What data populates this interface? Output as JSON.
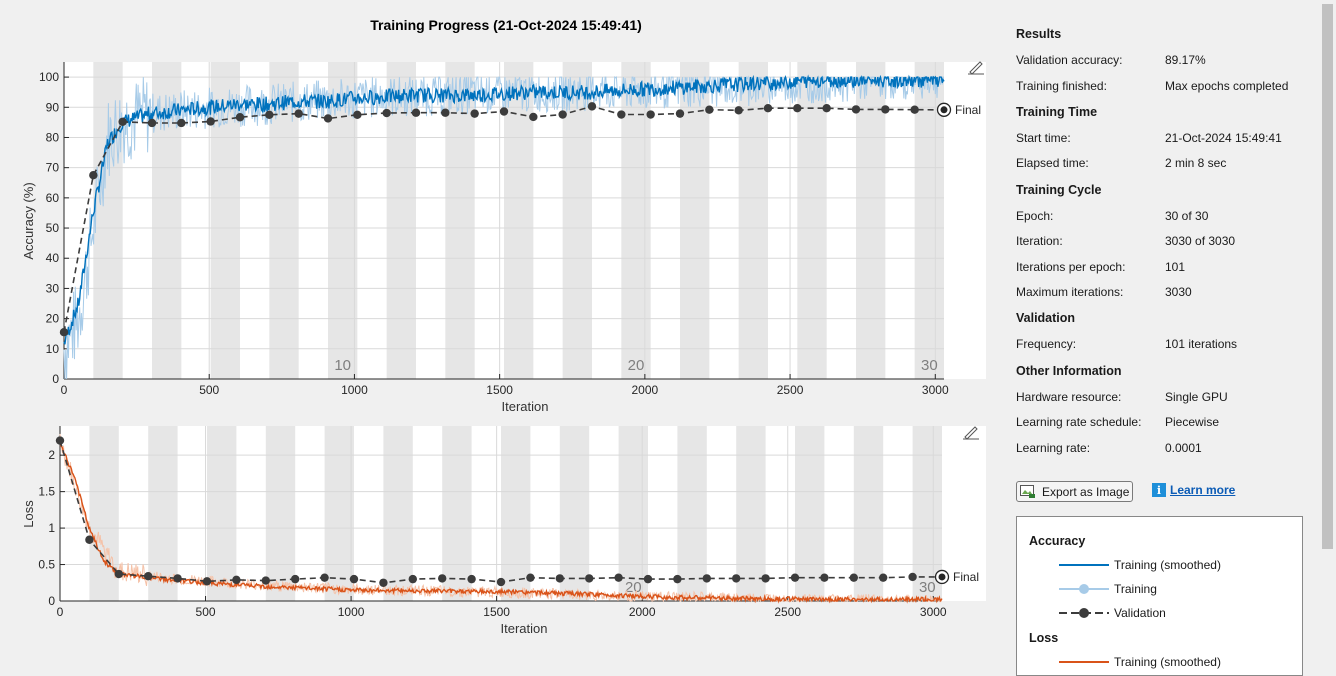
{
  "title": "Training Progress (21-Oct-2024 15:49:41)",
  "colors": {
    "training_smoothed_acc": "#0072bd",
    "training_acc": "#a7cbe8",
    "validation": "#3c3c3c",
    "training_smoothed_loss": "#d95319",
    "training_loss": "#f5c2a8",
    "epoch_band": "#e6e6e6"
  },
  "accuracy_chart": {
    "xlabel": "Iteration",
    "ylabel": "Accuracy (%)",
    "x_ticks": [
      "0",
      "500",
      "1000",
      "1500",
      "2000",
      "2500",
      "3000"
    ],
    "y_ticks": [
      "0",
      "10",
      "20",
      "30",
      "40",
      "50",
      "60",
      "70",
      "80",
      "90",
      "100"
    ],
    "epoch_labels": [
      "10",
      "20",
      "30"
    ],
    "final_label": "Final"
  },
  "loss_chart": {
    "xlabel": "Iteration",
    "ylabel": "Loss",
    "x_ticks": [
      "0",
      "500",
      "1000",
      "1500",
      "2000",
      "2500",
      "3000"
    ],
    "y_ticks": [
      "0",
      "0.5",
      "1",
      "1.5",
      "2"
    ],
    "epoch_labels": [
      "20",
      "30"
    ],
    "final_label": "Final"
  },
  "chart_data": [
    {
      "type": "line",
      "xlabel": "Iteration",
      "ylabel": "Accuracy (%)",
      "xlim": [
        0,
        3030
      ],
      "ylim": [
        0,
        100
      ],
      "epochs": 30,
      "iterations_per_epoch": 101,
      "series": [
        {
          "name": "Training (smoothed)",
          "x": [
            0,
            50,
            100,
            150,
            200,
            300,
            400,
            500,
            600,
            700,
            800,
            900,
            1000,
            1200,
            1400,
            1600,
            1800,
            2000,
            2200,
            2400,
            2600,
            2800,
            3030
          ],
          "values": [
            12,
            25,
            55,
            78,
            85,
            88,
            89,
            90,
            91,
            91,
            92,
            92,
            93,
            94,
            94,
            95,
            95,
            96,
            97,
            98,
            99,
            99,
            99
          ]
        },
        {
          "name": "Training",
          "x": [
            0,
            50,
            100,
            150,
            200,
            300,
            500,
            700,
            1000,
            1500,
            2000,
            2500,
            3030
          ],
          "values": [
            10,
            20,
            50,
            80,
            85,
            88,
            90,
            91,
            93,
            95,
            96,
            98,
            100
          ]
        },
        {
          "name": "Validation",
          "x": [
            0,
            101,
            202,
            303,
            404,
            505,
            606,
            707,
            808,
            909,
            1010,
            1111,
            1212,
            1313,
            1414,
            1515,
            1616,
            1717,
            1818,
            1919,
            2020,
            2121,
            2222,
            2323,
            2424,
            2525,
            2626,
            2727,
            2828,
            2929,
            3030
          ],
          "values": [
            15.5,
            67.5,
            85.2,
            84.8,
            84.8,
            85.3,
            86.7,
            87.5,
            87.9,
            86.3,
            87.5,
            88.1,
            88.2,
            88.2,
            87.9,
            88.6,
            86.8,
            87.6,
            90.3,
            87.6,
            87.6,
            87.9,
            89.2,
            89.0,
            89.7,
            89.7,
            89.7,
            89.3,
            89.3,
            89.2,
            89.17
          ]
        }
      ]
    },
    {
      "type": "line",
      "xlabel": "Iteration",
      "ylabel": "Loss",
      "xlim": [
        0,
        3030
      ],
      "ylim": [
        0,
        2.4
      ],
      "series": [
        {
          "name": "Training (smoothed)",
          "x": [
            0,
            50,
            100,
            150,
            200,
            300,
            400,
            500,
            700,
            1000,
            1300,
            1600,
            1900,
            2100,
            2400,
            2700,
            3030
          ],
          "values": [
            2.15,
            1.7,
            1.0,
            0.55,
            0.38,
            0.32,
            0.28,
            0.25,
            0.2,
            0.15,
            0.14,
            0.12,
            0.08,
            0.05,
            0.03,
            0.02,
            0.02
          ]
        },
        {
          "name": "Training",
          "x": [
            0,
            100,
            200,
            400,
            700,
            1000,
            1500,
            2000,
            2500,
            3030
          ],
          "values": [
            2.2,
            1.0,
            0.4,
            0.3,
            0.22,
            0.16,
            0.12,
            0.06,
            0.03,
            0.01
          ]
        },
        {
          "name": "Validation",
          "x": [
            0,
            101,
            202,
            303,
            404,
            505,
            606,
            707,
            808,
            909,
            1010,
            1111,
            1212,
            1313,
            1414,
            1515,
            1616,
            1717,
            1818,
            1919,
            2020,
            2121,
            2222,
            2323,
            2424,
            2525,
            2626,
            2727,
            2828,
            2929,
            3030
          ],
          "values": [
            2.2,
            0.84,
            0.37,
            0.34,
            0.31,
            0.27,
            0.29,
            0.28,
            0.3,
            0.32,
            0.3,
            0.25,
            0.3,
            0.31,
            0.3,
            0.26,
            0.32,
            0.31,
            0.31,
            0.32,
            0.3,
            0.3,
            0.31,
            0.31,
            0.31,
            0.32,
            0.32,
            0.32,
            0.32,
            0.33,
            0.33
          ]
        }
      ]
    }
  ],
  "panel": {
    "results": {
      "heading": "Results",
      "rows": [
        {
          "k": "Validation accuracy:",
          "v": "89.17%"
        },
        {
          "k": "Training finished:",
          "v": "Max epochs completed"
        }
      ]
    },
    "training_time": {
      "heading": "Training Time",
      "rows": [
        {
          "k": "Start time:",
          "v": "21-Oct-2024 15:49:41"
        },
        {
          "k": "Elapsed time:",
          "v": "2 min 8 sec"
        }
      ]
    },
    "training_cycle": {
      "heading": "Training Cycle",
      "rows": [
        {
          "k": "Epoch:",
          "v": "30 of 30"
        },
        {
          "k": "Iteration:",
          "v": "3030 of 3030"
        },
        {
          "k": "Iterations per epoch:",
          "v": "101"
        },
        {
          "k": "Maximum iterations:",
          "v": "3030"
        }
      ]
    },
    "validation": {
      "heading": "Validation",
      "rows": [
        {
          "k": "Frequency:",
          "v": "101 iterations"
        }
      ]
    },
    "other": {
      "heading": "Other Information",
      "rows": [
        {
          "k": "Hardware resource:",
          "v": "Single GPU"
        },
        {
          "k": "Learning rate schedule:",
          "v": "Piecewise"
        },
        {
          "k": "Learning rate:",
          "v": "0.0001"
        }
      ]
    }
  },
  "export_button": "Export as Image",
  "learn_more": "Learn more",
  "legend": {
    "accuracy_heading": "Accuracy",
    "loss_heading": "Loss",
    "items": [
      "Training (smoothed)",
      "Training",
      "Validation"
    ],
    "loss_items": [
      "Training (smoothed)"
    ]
  }
}
